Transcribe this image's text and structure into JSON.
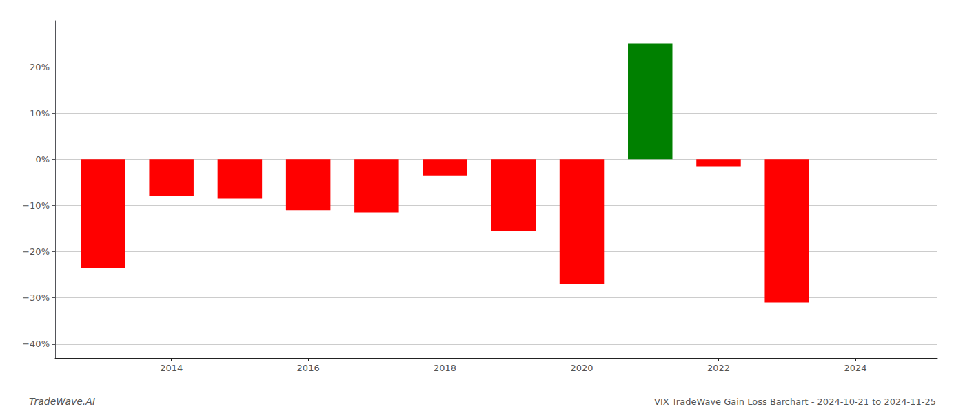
{
  "chart_data": {
    "type": "bar",
    "title": "VIX TradeWave Gain Loss Barchart - 2024-10-21 to 2024-11-25",
    "annotations": [
      "TradeWave.AI"
    ],
    "x": [
      2013,
      2014,
      2015,
      2016,
      2017,
      2018,
      2019,
      2020,
      2021,
      2022,
      2023
    ],
    "values": [
      -23.5,
      -8.0,
      -8.5,
      -11.0,
      -11.5,
      -3.5,
      -15.5,
      -27.0,
      25.0,
      -1.5,
      -31.0
    ],
    "colors": [
      "#ff0000",
      "#ff0000",
      "#ff0000",
      "#ff0000",
      "#ff0000",
      "#ff0000",
      "#ff0000",
      "#ff0000",
      "#008000",
      "#ff0000",
      "#ff0000"
    ],
    "xlim": [
      2012.3,
      2025.2
    ],
    "xticks": [
      2014,
      2016,
      2018,
      2020,
      2022,
      2024
    ],
    "ylim": [
      -43,
      30
    ],
    "yticks": [
      {
        "value": -40,
        "label": "−40%"
      },
      {
        "value": -30,
        "label": "−30%"
      },
      {
        "value": -20,
        "label": "−20%"
      },
      {
        "value": -10,
        "label": "−10%"
      },
      {
        "value": 0,
        "label": "0%"
      },
      {
        "value": 10,
        "label": "10%"
      },
      {
        "value": 20,
        "label": "20%"
      }
    ],
    "grid": true
  }
}
